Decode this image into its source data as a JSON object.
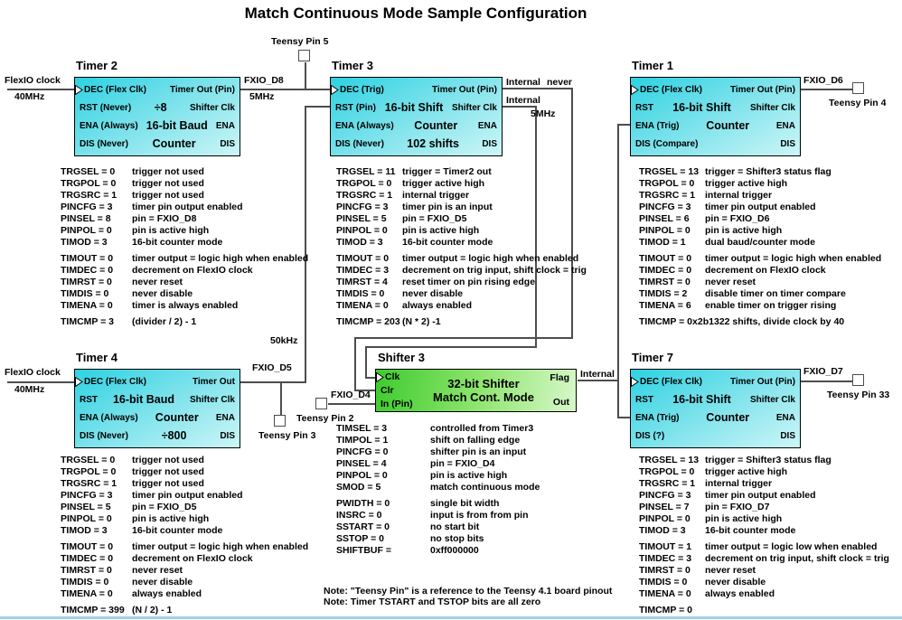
{
  "title": "Match Continuous Mode Sample Configuration",
  "notes": [
    "Note: \"Teensy Pin\" is a reference to the Teensy 4.1 board pinout",
    "Note: Timer TSTART and TSTOP bits are all zero"
  ],
  "colors": {
    "timer_block_gradient_start": "#2dd2e2",
    "timer_block_gradient_end": "#cdf6f7",
    "shifter_block_gradient_start": "#3ecb2e",
    "shifter_block_gradient_end": "#d8f8ca",
    "wire": "#4d4d4d",
    "window_bottom_edge": "#9fd0e8"
  },
  "blocks": {
    "timer2": {
      "header": "Timer 2",
      "rows": [
        {
          "left": "DEC (Flex Clk)",
          "center": "",
          "right": "Timer Out (Pin)"
        },
        {
          "left": "RST (Never)",
          "center": "÷8",
          "right": "Shifter Clk"
        },
        {
          "left": "ENA (Always)",
          "center": "16-bit Baud",
          "right": "ENA"
        },
        {
          "left": "DIS (Never)",
          "center": "Counter",
          "right": "DIS"
        }
      ]
    },
    "timer3": {
      "header": "Timer 3",
      "rows": [
        {
          "left": "DEC (Trig)",
          "center": "",
          "right": "Timer Out (Pin)"
        },
        {
          "left": "RST (Pin)",
          "center": "16-bit Shift",
          "right": "Shifter Clk"
        },
        {
          "left": "ENA (Always)",
          "center": "Counter",
          "right": "ENA"
        },
        {
          "left": "DIS (Never)",
          "center": "102 shifts",
          "right": "DIS"
        }
      ]
    },
    "timer1": {
      "header": "Timer 1",
      "rows": [
        {
          "left": "DEC (Flex Clk)",
          "center": "",
          "right": "Timer Out (Pin)"
        },
        {
          "left": "RST",
          "center": "16-bit Shift",
          "right": "Shifter Clk"
        },
        {
          "left": "ENA (Trig)",
          "center": "Counter",
          "right": "ENA"
        },
        {
          "left": "DIS (Compare)",
          "center": "",
          "right": "DIS"
        }
      ]
    },
    "timer4": {
      "header": "Timer 4",
      "rows": [
        {
          "left": "DEC (Flex Clk)",
          "center": "",
          "right": "Timer Out"
        },
        {
          "left": "RST",
          "center": "16-bit Baud",
          "right": "Shifter Clk"
        },
        {
          "left": "ENA (Always)",
          "center": "Counter",
          "right": "ENA"
        },
        {
          "left": "DIS (Never)",
          "center": "÷800",
          "right": "DIS"
        }
      ]
    },
    "timer7": {
      "header": "Timer 7",
      "rows": [
        {
          "left": "DEC (Flex Clk)",
          "center": "",
          "right": "Timer Out (Pin)"
        },
        {
          "left": "RST",
          "center": "16-bit Shift",
          "right": "Shifter Clk"
        },
        {
          "left": "ENA (Trig)",
          "center": "Counter",
          "right": "ENA"
        },
        {
          "left": "DIS (?)",
          "center": "",
          "right": "DIS"
        }
      ]
    },
    "shifter3": {
      "header": "Shifter 3",
      "left_ports": [
        "Clk",
        "Clr",
        "In (Pin)"
      ],
      "center_line1": "32-bit Shifter",
      "center_line2": "Match Cont. Mode",
      "right_top": "Flag",
      "right_bottom": "Out"
    }
  },
  "configs": {
    "timer2": {
      "groups": [
        [
          {
            "p": "TRGSEL = 0",
            "d": "trigger not used"
          },
          {
            "p": "TRGPOL = 0",
            "d": "trigger not used"
          },
          {
            "p": "TRGSRC = 1",
            "d": "trigger not used"
          },
          {
            "p": "PINCFG = 3",
            "d": "timer pin output enabled"
          },
          {
            "p": "PINSEL = 8",
            "d": "pin = FXIO_D8"
          },
          {
            "p": "PINPOL = 0",
            "d": "pin is active high"
          },
          {
            "p": "TIMOD = 3",
            "d": "16-bit counter mode"
          }
        ],
        [
          {
            "p": "TIMOUT = 0",
            "d": "timer output = logic high when enabled"
          },
          {
            "p": "TIMDEC = 0",
            "d": "decrement on FlexIO clock"
          },
          {
            "p": "TIMRST = 0",
            "d": "never reset"
          },
          {
            "p": "TIMDIS = 0",
            "d": "never disable"
          },
          {
            "p": "TIMENA = 0",
            "d": "timer is always enabled"
          }
        ],
        [
          {
            "p": "TIMCMP = 3",
            "d": "(divider / 2) - 1"
          }
        ]
      ]
    },
    "timer3": {
      "groups": [
        [
          {
            "p": "TRGSEL = 11",
            "d": "trigger = Timer2 out"
          },
          {
            "p": "TRGPOL = 0",
            "d": "trigger active high"
          },
          {
            "p": "TRGSRC = 1",
            "d": "internal trigger"
          },
          {
            "p": "PINCFG = 3",
            "d": "timer pin is an input"
          },
          {
            "p": "PINSEL = 5",
            "d": "pin = FXIO_D5"
          },
          {
            "p": "PINPOL = 0",
            "d": "pin is active high"
          },
          {
            "p": "TIMOD = 3",
            "d": "16-bit counter mode"
          }
        ],
        [
          {
            "p": "TIMOUT = 0",
            "d": "timer output = logic high when enabled"
          },
          {
            "p": "TIMDEC = 3",
            "d": "decrement on trig input, shift clock = trig"
          },
          {
            "p": "TIMRST = 4",
            "d": "reset timer on pin rising edge"
          },
          {
            "p": "TIMDIS = 0",
            "d": "never disable"
          },
          {
            "p": "TIMENA = 0",
            "d": "always enabled"
          }
        ],
        [
          {
            "p": "TIMCMP = 203",
            "d": "(N * 2) -1"
          }
        ]
      ]
    },
    "timer1": {
      "groups": [
        [
          {
            "p": "TRGSEL = 13",
            "d": "trigger = Shifter3 status flag"
          },
          {
            "p": "TRGPOL = 0",
            "d": "trigger active high"
          },
          {
            "p": "TRGSRC = 1",
            "d": "internal trigger"
          },
          {
            "p": "PINCFG = 3",
            "d": "timer pin output enabled"
          },
          {
            "p": "PINSEL = 6",
            "d": "pin = FXIO_D6"
          },
          {
            "p": "PINPOL = 0",
            "d": "pin is active high"
          },
          {
            "p": "TIMOD = 1",
            "d": "dual baud/counter mode"
          }
        ],
        [
          {
            "p": "TIMOUT = 0",
            "d": "timer output = logic high when enabled"
          },
          {
            "p": "TIMDEC = 0",
            "d": "decrement on FlexIO clock"
          },
          {
            "p": "TIMRST = 0",
            "d": "never reset"
          },
          {
            "p": "TIMDIS = 2",
            "d": "disable timer on timer compare"
          },
          {
            "p": "TIMENA = 6",
            "d": "enable timer on trigger rising"
          }
        ],
        [
          {
            "p": "TIMCMP = 0x2b13",
            "d": "22 shifts,  divide clock by 40"
          }
        ]
      ]
    },
    "timer4": {
      "groups": [
        [
          {
            "p": "TRGSEL = 0",
            "d": "trigger not used"
          },
          {
            "p": "TRGPOL = 0",
            "d": "trigger not used"
          },
          {
            "p": "TRGSRC = 1",
            "d": "trigger not used"
          },
          {
            "p": "PINCFG = 3",
            "d": "timer pin output enabled"
          },
          {
            "p": "PINSEL = 5",
            "d": "pin = FXIO_D5"
          },
          {
            "p": "PINPOL = 0",
            "d": "pin is active high"
          },
          {
            "p": "TIMOD = 3",
            "d": "16-bit counter mode"
          }
        ],
        [
          {
            "p": "TIMOUT = 0",
            "d": "timer output = logic high when enabled"
          },
          {
            "p": "TIMDEC = 0",
            "d": "decrement on FlexIO clock"
          },
          {
            "p": "TIMRST = 0",
            "d": "never reset"
          },
          {
            "p": "TIMDIS = 0",
            "d": "never disable"
          },
          {
            "p": "TIMENA = 0",
            "d": "always enabled"
          }
        ],
        [
          {
            "p": "TIMCMP = 399",
            "d": "(N / 2) - 1"
          }
        ]
      ]
    },
    "timer7": {
      "groups": [
        [
          {
            "p": "TRGSEL = 13",
            "d": "trigger = Shifter3 status flag"
          },
          {
            "p": "TRGPOL = 0",
            "d": "trigger active high"
          },
          {
            "p": "TRGSRC = 1",
            "d": "internal trigger"
          },
          {
            "p": "PINCFG = 3",
            "d": "timer pin output enabled"
          },
          {
            "p": "PINSEL = 7",
            "d": "pin = FXIO_D7"
          },
          {
            "p": "PINPOL = 0",
            "d": "pin is active high"
          },
          {
            "p": "TIMOD = 3",
            "d": "16-bit counter mode"
          }
        ],
        [
          {
            "p": "TIMOUT = 1",
            "d": "timer output = logic low when enabled"
          },
          {
            "p": "TIMDEC = 3",
            "d": "decrement on trig input, shift clock = trig"
          },
          {
            "p": "TIMRST = 0",
            "d": "never reset"
          },
          {
            "p": "TIMDIS = 0",
            "d": "never disable"
          },
          {
            "p": "TIMENA = 0",
            "d": "always enabled"
          }
        ],
        [
          {
            "p": "TIMCMP = 0",
            "d": ""
          }
        ]
      ]
    },
    "shifter3": {
      "groups": [
        [
          {
            "p": "TIMSEL = 3",
            "d": "controlled from Timer3"
          },
          {
            "p": "TIMPOL = 1",
            "d": "shift on falling edge"
          },
          {
            "p": "PINCFG = 0",
            "d": "shifter pin is an input"
          },
          {
            "p": "PINSEL = 4",
            "d": "pin = FXIO_D4"
          },
          {
            "p": "PINPOL = 0",
            "d": "pin is active high"
          },
          {
            "p": "SMOD = 5",
            "d": "match continuous mode"
          }
        ],
        [
          {
            "p": "PWIDTH = 0",
            "d": "single bit width"
          },
          {
            "p": "INSRC = 0",
            "d": "input is from from pin"
          },
          {
            "p": "SSTART = 0",
            "d": "no start bit"
          },
          {
            "p": "SSTOP = 0",
            "d": "no stop bits"
          },
          {
            "p": "SHIFTBUF =",
            "d": "0xff000000"
          }
        ]
      ]
    }
  },
  "wire_labels": {
    "t2_in_name": "FlexIO clock",
    "t2_in_freq": "40MHz",
    "d8_name": "FXIO_D8",
    "d8_freq": "5MHz",
    "teensy5": "Teensy Pin 5",
    "t3_out_a": "Internal",
    "t3_out_b": "never",
    "t3_sclk_a": "Internal",
    "t3_sclk_b": "5MHz",
    "d5_freq": "50kHz",
    "d5_name": "FXIO_D5",
    "teensy3": "Teensy Pin 3",
    "t4_in_name": "FlexIO clock",
    "t4_in_freq": "40MHz",
    "d4_name": "FXIO_D4",
    "teensy2": "Teensy Pin 2",
    "flag_net": "Internal",
    "d6_name": "FXIO_D6",
    "teensy4": "Teensy Pin 4",
    "d7_name": "FXIO_D7",
    "teensy33": "Teensy Pin 33"
  }
}
